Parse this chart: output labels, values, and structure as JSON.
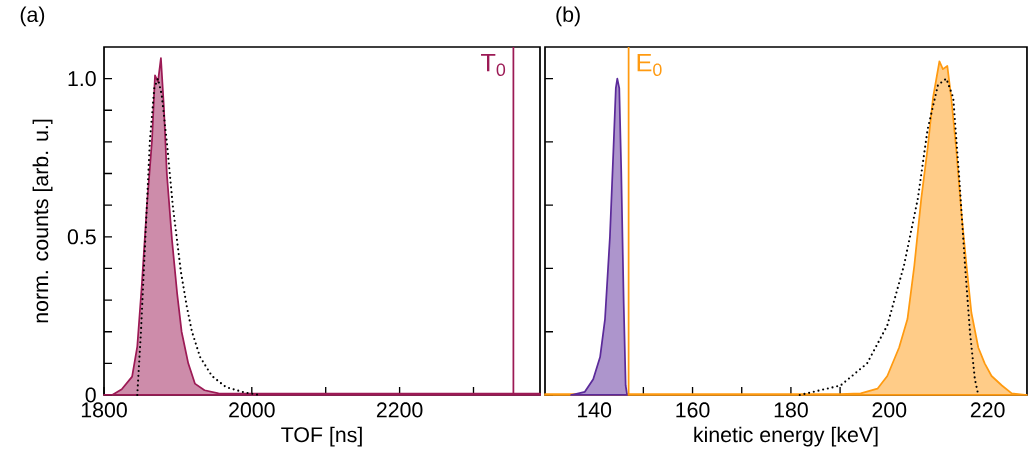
{
  "chart_data": [
    {
      "type": "area",
      "title": "(a)",
      "xlabel": "TOF [ns]",
      "ylabel": "norm. counts [arb. u.]",
      "xlim": [
        1800,
        2390
      ],
      "ylim": [
        0,
        1.1
      ],
      "xticks": [
        1800,
        {
          "value": 1900,
          "label": null
        },
        2000,
        {
          "value": 2100,
          "label": null
        },
        2200,
        {
          "value": 2300,
          "label": null
        }
      ],
      "yticks": [
        0,
        {
          "value": 0.1,
          "label": null
        },
        {
          "value": 0.2,
          "label": null
        },
        {
          "value": 0.3,
          "label": null
        },
        {
          "value": 0.4,
          "label": null
        },
        0.5,
        {
          "value": 0.6,
          "label": null
        },
        {
          "value": 0.7,
          "label": null
        },
        {
          "value": 0.8,
          "label": null
        },
        {
          "value": 0.9,
          "label": null
        },
        {
          "value": 1,
          "label": "1.0"
        }
      ],
      "series": [
        {
          "color": "#9c1a55",
          "x": [
            1800,
            1811,
            1824,
            1838,
            1845,
            1851,
            1858,
            1865,
            1869,
            1873,
            1877,
            1881,
            1885,
            1892,
            1899,
            1905,
            1914,
            1923,
            1936,
            1955,
            2000,
            2100,
            2200,
            2300,
            2390
          ],
          "values": [
            0,
            0,
            0.018,
            0.058,
            0.153,
            0.343,
            0.596,
            0.807,
            1.01,
            0.99,
            1.065,
            0.91,
            0.7,
            0.49,
            0.32,
            0.2,
            0.1,
            0.036,
            0.015,
            0.005,
            0.004,
            0.004,
            0.004,
            0.004,
            0.004
          ]
        },
        {
          "type": "line",
          "line_style": "dotted",
          "color": "#000000",
          "x": [
            1845,
            1850,
            1856,
            1862,
            1868,
            1873,
            1878,
            1885,
            1893,
            1904,
            1912,
            1919,
            1930,
            1946,
            1965,
            1990,
            2010
          ],
          "values": [
            0,
            0.2,
            0.5,
            0.8,
            0.97,
            1.0,
            0.95,
            0.8,
            0.6,
            0.39,
            0.28,
            0.2,
            0.12,
            0.06,
            0.025,
            0.008,
            0
          ]
        }
      ],
      "ref_lines": [
        {
          "axis": "x",
          "value": 2354,
          "label": "T$_{0}$",
          "color": "#9c1a55"
        }
      ]
    },
    {
      "type": "area",
      "title": "(b)",
      "xlabel": "kinetic energy [keV]",
      "tick_labels": "x",
      "xlim": [
        130,
        228
      ],
      "ylim": [
        0,
        1.1
      ],
      "xticks": [
        140,
        {
          "value": 150,
          "label": null
        },
        160,
        {
          "value": 170,
          "label": null
        },
        180,
        {
          "value": 190,
          "label": null
        },
        200,
        {
          "value": 210,
          "label": null
        },
        220
      ],
      "series": [
        {
          "color": "#ff9a10",
          "x": [
            130,
            150,
            170,
            190,
            194.2,
            197.6,
            199.6,
            202.0,
            203.7,
            205.1,
            206.5,
            207.8,
            208.9,
            210.2,
            210.9,
            211.8,
            212.6,
            213.6,
            214.7,
            215.7,
            216.7,
            218.1,
            219.4,
            220.8,
            222.9,
            224.9,
            228
          ],
          "values": [
            0.003,
            0.003,
            0.003,
            0.003,
            0.005,
            0.02,
            0.06,
            0.15,
            0.24,
            0.41,
            0.62,
            0.78,
            0.94,
            1.055,
            1.03,
            1.04,
            0.94,
            0.78,
            0.57,
            0.41,
            0.26,
            0.15,
            0.1,
            0.06,
            0.03,
            0.005,
            0
          ]
        },
        {
          "color": "#5b2a9a",
          "x": [
            135.3,
            138.1,
            139.8,
            141.2,
            142.2,
            143.2,
            143.9,
            144.4,
            144.7,
            145.1,
            145.5,
            146.0,
            146.4,
            146.7
          ],
          "values": [
            0,
            0.01,
            0.05,
            0.12,
            0.24,
            0.5,
            0.77,
            0.97,
            1.0,
            0.97,
            0.71,
            0.29,
            0.03,
            0
          ]
        },
        {
          "type": "line",
          "line_style": "dotted",
          "color": "#000000",
          "x": [
            181.8,
            190.1,
            195.5,
            199.6,
            203.0,
            205.8,
            207.8,
            209.9,
            211.6,
            213.0,
            214.3,
            215.4,
            216.4,
            217.4,
            218.1
          ],
          "values": [
            0,
            0.03,
            0.1,
            0.22,
            0.41,
            0.62,
            0.84,
            0.98,
            1.0,
            0.94,
            0.67,
            0.41,
            0.2,
            0.05,
            0
          ]
        }
      ],
      "ref_lines": [
        {
          "axis": "x",
          "value": 147,
          "label": "E$_{0}$",
          "color": "#ff9a10"
        }
      ]
    }
  ]
}
